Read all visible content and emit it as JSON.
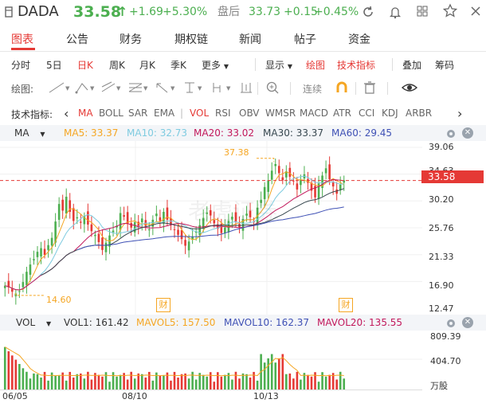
{
  "header": {
    "ticker": "DADA",
    "price": "33.58",
    "price_arrow": "↑",
    "change": "+1.69",
    "change_pct": "+5.30%",
    "after_hours_label": "盘后",
    "after_hours_price": "33.73",
    "after_hours_change": "+0.15",
    "after_hours_pct": "+0.45%"
  },
  "tabs": [
    "图表",
    "公告",
    "财务",
    "期权链",
    "新闻",
    "帖子",
    "资金"
  ],
  "period": {
    "items": [
      "分时",
      "5日",
      "日K",
      "周K",
      "月K",
      "季K",
      "更多"
    ],
    "active": "日K",
    "display": "显示",
    "draw": "绘图",
    "indicators": "技术指标",
    "overlay": "叠加",
    "chips": "筹码"
  },
  "drawing": {
    "label": "绘图:",
    "continuous": "连续"
  },
  "indicators": {
    "label": "技术指标:",
    "items": [
      "MA",
      "BOLL",
      "SAR",
      "EMA",
      "VOL",
      "RSI",
      "OBV",
      "WMSR",
      "MACD",
      "ATR",
      "CCI",
      "KDJ",
      "ARBR"
    ],
    "active": [
      "MA",
      "VOL"
    ]
  },
  "ma_legend": {
    "name": "MA",
    "ma5": "MA5: 33.37",
    "ma10": "MA10: 32.73",
    "ma20": "MA20: 33.02",
    "ma30": "MA30: 33.37",
    "ma60": "MA60: 29.45"
  },
  "vol_legend": {
    "name": "VOL",
    "vol1": "VOL1: 161.42",
    "mavol5": "MAVOL5: 157.50",
    "mavol10": "MAVOL10: 162.37",
    "mavol20": "MAVOL20: 135.55"
  },
  "price_axis": [
    "39.06",
    "34.63",
    "30.20",
    "25.76",
    "21.33",
    "16.90",
    "12.47"
  ],
  "current_price_tag": "33.58",
  "high_marker": "37.38",
  "low_marker": "14.60",
  "earnings_badge": "财",
  "vol_axis": [
    "809.39",
    "404.70",
    "万股"
  ],
  "date_axis": [
    "06/05",
    "08/10",
    "10/13"
  ],
  "watermark": "老虎证券",
  "colors": {
    "up": "#4caf50",
    "down": "#e53935",
    "ma5": "#f5a623",
    "ma10": "#7ecbe0",
    "ma20": "#c2185b",
    "ma30": "#37474f",
    "ma60": "#3f51b5",
    "accent": "#e53935"
  },
  "chart_data": {
    "type": "candlestick",
    "ylim": [
      12.47,
      39.06
    ],
    "last_close": 33.58,
    "high": 37.38,
    "low": 14.6,
    "candles_close": [
      16.2,
      15.9,
      15.2,
      14.9,
      15.3,
      16.8,
      18.5,
      19.7,
      20.6,
      21.8,
      22.4,
      21.3,
      22.9,
      24.1,
      26.8,
      29.7,
      28.6,
      30.9,
      28.4,
      26.9,
      27.5,
      26.6,
      27.7,
      26.3,
      25.2,
      24.6,
      23.4,
      22.1,
      23.3,
      24.5,
      25.3,
      26.1,
      28.2,
      27.6,
      26.4,
      25.8,
      26.7,
      25.9,
      27.3,
      26.1,
      25.5,
      27.1,
      28.1,
      26.9,
      28.4,
      27.1,
      26.3,
      25.5,
      24.6,
      23.9,
      22.8,
      23.5,
      24.3,
      25.1,
      26.2,
      27.4,
      28.3,
      27.8,
      26.5,
      25.6,
      24.9,
      25.8,
      26.9,
      27.6,
      26.8,
      25.9,
      27.2,
      28.1,
      27.5,
      26.8,
      29.1,
      30.4,
      32.5,
      33.6,
      35.2,
      36.3,
      34.8,
      33.6,
      35.1,
      34.2,
      33.5,
      32.1,
      33.7,
      34.6,
      33.2,
      31.9,
      30.8,
      33.1,
      34.4,
      35.6,
      33.8,
      32.6,
      31.4,
      32.9,
      33.6
    ],
    "vol_ylim": [
      0,
      809.39
    ]
  }
}
